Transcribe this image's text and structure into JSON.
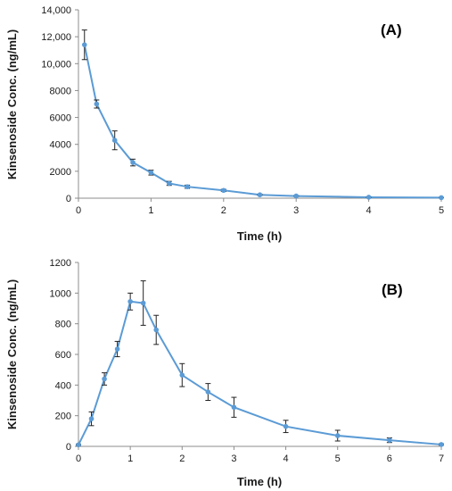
{
  "colors": {
    "line": "#5b9bd5",
    "marker": "#5b9bd5",
    "error_bar": "#222222",
    "axis": "#8c8c8c"
  },
  "chart_data": [
    {
      "type": "line",
      "panel_label": "(A)",
      "xlabel": "Time (h)",
      "ylabel": "Kinsenoside Conc. (ng/mL)",
      "xlim": [
        0,
        5
      ],
      "ylim": [
        0,
        14000
      ],
      "x_ticks": [
        0,
        1,
        2,
        3,
        4,
        5
      ],
      "y_ticks": [
        0,
        2000,
        4000,
        6000,
        8000,
        10000,
        12000,
        14000
      ],
      "x_tick_labels": [
        "0",
        "1",
        "2",
        "3",
        "4",
        "5"
      ],
      "y_tick_labels": [
        "0",
        "2000",
        "4000",
        "6000",
        "8000",
        "10,000",
        "12,000",
        "14,000"
      ],
      "grid": false,
      "series": [
        {
          "x": [
            0.083,
            0.25,
            0.5,
            0.75,
            1,
            1.25,
            1.5,
            2,
            2.5,
            3,
            4,
            5
          ],
          "y": [
            11400,
            7000,
            4300,
            2650,
            1900,
            1100,
            850,
            580,
            250,
            160,
            70,
            40
          ],
          "error": [
            1100,
            300,
            700,
            250,
            180,
            150,
            120,
            80,
            40,
            30,
            15,
            10
          ]
        }
      ]
    },
    {
      "type": "line",
      "panel_label": "(B)",
      "xlabel": "Time (h)",
      "ylabel": "Kinsenoside Conc. (ng/mL)",
      "xlim": [
        0,
        7
      ],
      "ylim": [
        0,
        1200
      ],
      "x_ticks": [
        0,
        1,
        2,
        3,
        4,
        5,
        6,
        7
      ],
      "y_ticks": [
        0,
        200,
        400,
        600,
        800,
        1000,
        1200
      ],
      "x_tick_labels": [
        "0",
        "1",
        "2",
        "3",
        "4",
        "5",
        "6",
        "7"
      ],
      "y_tick_labels": [
        "0",
        "200",
        "400",
        "600",
        "800",
        "1000",
        "1200"
      ],
      "grid": false,
      "series": [
        {
          "x": [
            0,
            0.25,
            0.5,
            0.75,
            1,
            1.25,
            1.5,
            2,
            2.5,
            3,
            4,
            5,
            6,
            7
          ],
          "y": [
            10,
            180,
            440,
            635,
            945,
            935,
            760,
            465,
            355,
            255,
            130,
            70,
            40,
            12
          ],
          "error": [
            5,
            45,
            40,
            50,
            55,
            145,
            95,
            75,
            55,
            65,
            40,
            35,
            15,
            5
          ]
        }
      ]
    }
  ]
}
